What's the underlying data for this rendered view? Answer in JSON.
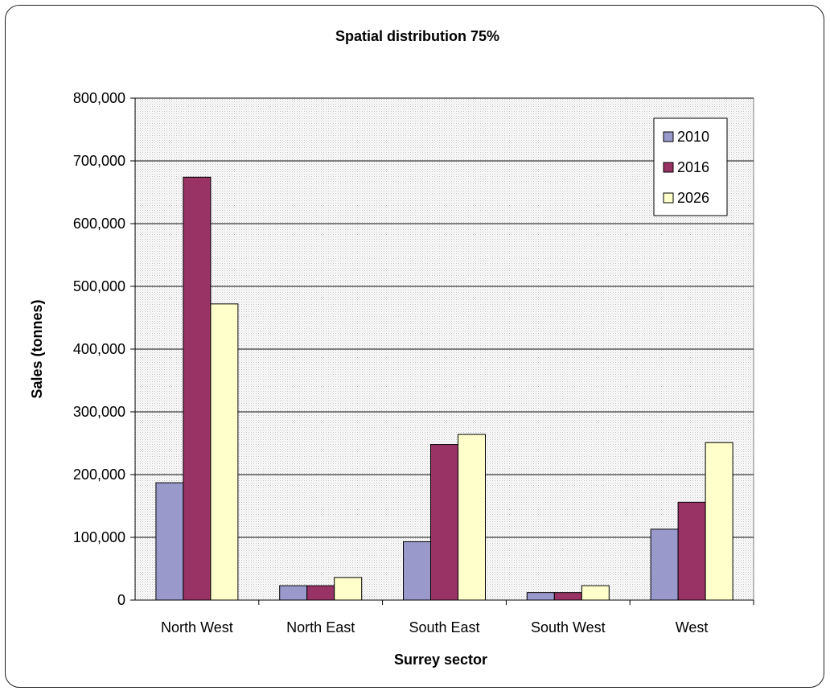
{
  "chart_data": {
    "type": "bar",
    "title": "Spatial distribution 75%",
    "xlabel": "Surrey sector",
    "ylabel": "Sales (tonnes)",
    "categories": [
      "North West",
      "North East",
      "South East",
      "South West",
      "West"
    ],
    "ylim": [
      0,
      800000
    ],
    "yticks": [
      "0",
      "100,000",
      "200,000",
      "300,000",
      "400,000",
      "500,000",
      "600,000",
      "700,000",
      "800,000"
    ],
    "ytick_values": [
      0,
      100000,
      200000,
      300000,
      400000,
      500000,
      600000,
      700000,
      800000
    ],
    "grid": true,
    "legend_position": "top-right",
    "series": [
      {
        "name": "2010",
        "color": "#9999cc",
        "values": [
          187000,
          23000,
          93000,
          12000,
          113000
        ]
      },
      {
        "name": "2016",
        "color": "#993366",
        "values": [
          674000,
          23000,
          248000,
          12000,
          156000
        ]
      },
      {
        "name": "2026",
        "color": "#ffffcc",
        "values": [
          472000,
          36000,
          264000,
          23000,
          251000
        ]
      }
    ]
  }
}
